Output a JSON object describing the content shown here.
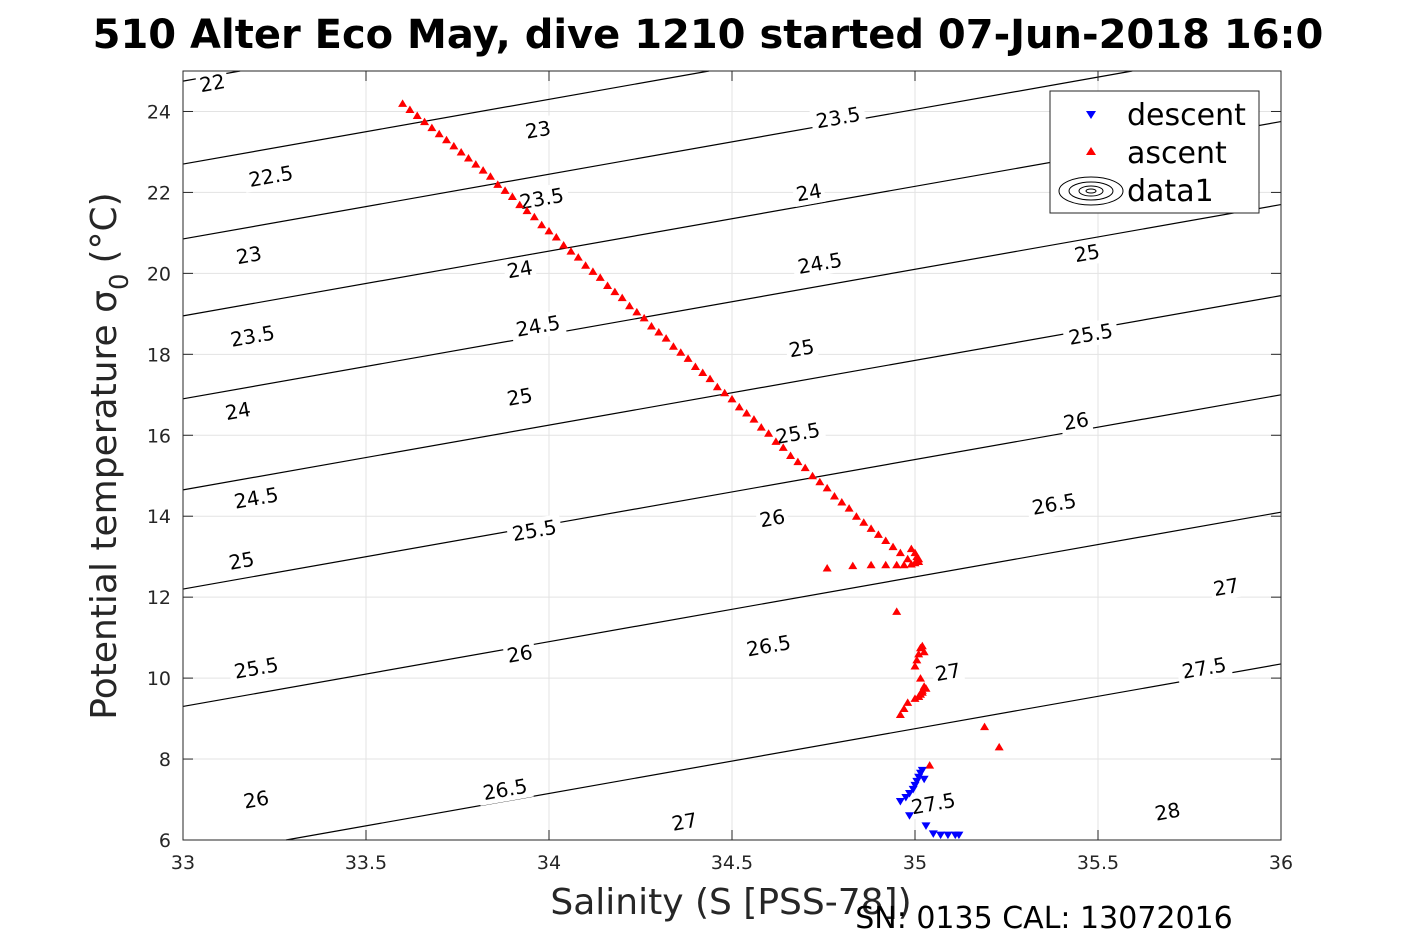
{
  "chart_data": {
    "type": "scatter",
    "title": "510 Alter Eco May, dive 1210 started 07-Jun-2018 16:0",
    "xlabel": "Salinity (S [PSS-78])",
    "ylabel": "Potential temperature σ",
    "ylabel_subscript": "0",
    "ylabel_unit": "(°C)",
    "footer": "SN: 0135  CAL: 13072016",
    "xlim": [
      33,
      36
    ],
    "ylim": [
      6,
      25
    ],
    "xticks": [
      33,
      33.5,
      34,
      34.5,
      35,
      35.5,
      36
    ],
    "xtick_labels": [
      "33",
      "33.5",
      "34",
      "34.5",
      "35",
      "35.5",
      "36"
    ],
    "yticks": [
      6,
      8,
      10,
      12,
      14,
      16,
      18,
      20,
      22,
      24
    ],
    "ytick_labels": [
      "6",
      "8",
      "10",
      "12",
      "14",
      "16",
      "18",
      "20",
      "22",
      "24"
    ],
    "grid": true,
    "legend_position": "top-right",
    "legend": [
      {
        "label": "descent",
        "marker": "triangle-down",
        "color": "#0000ff"
      },
      {
        "label": "ascent",
        "marker": "triangle-up",
        "color": "#ff0000"
      },
      {
        "label": "data1",
        "marker": "contour",
        "color": "#000000"
      }
    ],
    "contours": {
      "color": "#000000",
      "lines": [
        {
          "level": 22,
          "label": "22",
          "left_temp": 24.75
        },
        {
          "level": 22.5,
          "label": "22.5",
          "left_temp": 22.7
        },
        {
          "level": 23,
          "label": "23",
          "left_temp": 20.85
        },
        {
          "level": 23.5,
          "label": "23.5",
          "left_temp": 18.95
        },
        {
          "level": 24,
          "label": "24",
          "left_temp": 16.9
        },
        {
          "level": 24.5,
          "label": "24.5",
          "left_temp": 14.65
        },
        {
          "level": 25,
          "label": "25",
          "left_temp": 12.2
        },
        {
          "level": 25.5,
          "label": "25.5",
          "left_temp": 9.3
        },
        {
          "level": 26,
          "label": "26",
          "left_temp": 5.55
        },
        {
          "level": 26.5,
          "label": "26.5",
          "left_temp": 0.8
        },
        {
          "level": 27,
          "label": "27",
          "left_temp": -3.95
        },
        {
          "level": 27.5,
          "label": "27.5",
          "left_temp": -8.2
        },
        {
          "level": 28,
          "label": "28",
          "left_temp": -12.1
        }
      ],
      "labels": [
        {
          "text": "22",
          "x": 33.08,
          "y": 24.7
        },
        {
          "text": "22.5",
          "x": 33.24,
          "y": 22.4
        },
        {
          "text": "23",
          "x": 33.18,
          "y": 20.45
        },
        {
          "text": "23.5",
          "x": 33.19,
          "y": 18.45
        },
        {
          "text": "24",
          "x": 33.15,
          "y": 16.6
        },
        {
          "text": "24.5",
          "x": 33.2,
          "y": 14.45
        },
        {
          "text": "25",
          "x": 33.16,
          "y": 12.9
        },
        {
          "text": "25.5",
          "x": 33.2,
          "y": 10.25
        },
        {
          "text": "26",
          "x": 33.2,
          "y": 7.0
        },
        {
          "text": "23",
          "x": 33.97,
          "y": 23.55
        },
        {
          "text": "23.5",
          "x": 33.98,
          "y": 21.85
        },
        {
          "text": "24",
          "x": 33.92,
          "y": 20.1
        },
        {
          "text": "24.5",
          "x": 33.97,
          "y": 18.7
        },
        {
          "text": "25",
          "x": 33.92,
          "y": 16.95
        },
        {
          "text": "25.5",
          "x": 33.96,
          "y": 13.65
        },
        {
          "text": "26",
          "x": 33.92,
          "y": 10.6
        },
        {
          "text": "26.5",
          "x": 33.88,
          "y": 7.25
        },
        {
          "text": "27",
          "x": 34.37,
          "y": 6.45
        },
        {
          "text": "23.5",
          "x": 34.79,
          "y": 23.85
        },
        {
          "text": "24",
          "x": 34.71,
          "y": 22.0
        },
        {
          "text": "24.5",
          "x": 34.74,
          "y": 20.25
        },
        {
          "text": "25",
          "x": 34.69,
          "y": 18.15
        },
        {
          "text": "25.5",
          "x": 34.68,
          "y": 16.05
        },
        {
          "text": "26",
          "x": 34.61,
          "y": 13.95
        },
        {
          "text": "26.5",
          "x": 34.6,
          "y": 10.8
        },
        {
          "text": "27",
          "x": 35.09,
          "y": 10.15
        },
        {
          "text": "27.5",
          "x": 35.05,
          "y": 6.9
        },
        {
          "text": "25",
          "x": 35.47,
          "y": 20.5
        },
        {
          "text": "25.5",
          "x": 35.48,
          "y": 18.5
        },
        {
          "text": "26",
          "x": 35.44,
          "y": 16.35
        },
        {
          "text": "26.5",
          "x": 35.38,
          "y": 14.3
        },
        {
          "text": "27",
          "x": 35.85,
          "y": 12.25
        },
        {
          "text": "27.5",
          "x": 35.79,
          "y": 10.25
        },
        {
          "text": "28",
          "x": 35.69,
          "y": 6.7
        }
      ]
    },
    "series": [
      {
        "name": "descent",
        "marker": "triangle-down",
        "color": "#0000ff",
        "x": [
          34.96,
          34.975,
          34.985,
          34.995,
          35.0,
          35.005,
          35.01,
          35.015,
          35.02,
          35.025,
          34.985,
          35.03,
          35.05,
          35.07,
          35.09,
          35.11,
          35.12
        ],
        "y": [
          6.95,
          7.05,
          7.15,
          7.25,
          7.35,
          7.45,
          7.55,
          7.65,
          7.72,
          7.5,
          6.6,
          6.35,
          6.15,
          6.12,
          6.12,
          6.12,
          6.12
        ]
      },
      {
        "name": "ascent",
        "marker": "triangle-up",
        "color": "#ff0000",
        "x": [
          33.6,
          33.62,
          33.64,
          33.66,
          33.68,
          33.7,
          33.72,
          33.74,
          33.76,
          33.78,
          33.8,
          33.82,
          33.84,
          33.86,
          33.88,
          33.9,
          33.92,
          33.94,
          33.96,
          33.98,
          34.0,
          34.02,
          34.04,
          34.06,
          34.08,
          34.1,
          34.12,
          34.14,
          34.16,
          34.18,
          34.2,
          34.22,
          34.24,
          34.26,
          34.28,
          34.3,
          34.32,
          34.34,
          34.36,
          34.38,
          34.4,
          34.42,
          34.44,
          34.46,
          34.48,
          34.5,
          34.52,
          34.54,
          34.56,
          34.58,
          34.6,
          34.62,
          34.64,
          34.66,
          34.68,
          34.7,
          34.72,
          34.74,
          34.76,
          34.78,
          34.8,
          34.82,
          34.84,
          34.86,
          34.88,
          34.9,
          34.92,
          34.94,
          34.96,
          34.98,
          34.99,
          35.0,
          35.005,
          35.01,
          35.01,
          35.0,
          34.99,
          34.97,
          34.95,
          34.92,
          34.88,
          34.83,
          34.76,
          34.95,
          35.0,
          35.005,
          35.01,
          35.015,
          35.02,
          35.025,
          35.015,
          35.01,
          35.02,
          35.03,
          35.025,
          35.02,
          35.015,
          35.01,
          35.0,
          34.98,
          34.97,
          34.96,
          35.04,
          35.19,
          35.23
        ],
        "y": [
          24.2,
          24.05,
          23.9,
          23.75,
          23.6,
          23.45,
          23.3,
          23.15,
          23.0,
          22.85,
          22.7,
          22.55,
          22.4,
          22.2,
          22.05,
          21.9,
          21.7,
          21.55,
          21.4,
          21.2,
          21.05,
          20.9,
          20.7,
          20.55,
          20.4,
          20.2,
          20.05,
          19.9,
          19.7,
          19.55,
          19.4,
          19.2,
          19.05,
          18.9,
          18.7,
          18.55,
          18.4,
          18.2,
          18.05,
          17.9,
          17.7,
          17.55,
          17.4,
          17.2,
          17.05,
          16.9,
          16.7,
          16.55,
          16.4,
          16.2,
          16.05,
          15.85,
          15.7,
          15.5,
          15.35,
          15.2,
          15.0,
          14.85,
          14.7,
          14.5,
          14.35,
          14.2,
          14.0,
          13.85,
          13.7,
          13.55,
          13.4,
          13.25,
          13.1,
          12.95,
          13.2,
          13.1,
          13.0,
          12.95,
          12.88,
          12.85,
          12.82,
          12.8,
          12.8,
          12.8,
          12.8,
          12.78,
          12.72,
          11.65,
          10.3,
          10.45,
          10.6,
          10.75,
          10.8,
          10.65,
          10.0,
          9.55,
          9.65,
          9.75,
          9.8,
          9.7,
          9.6,
          9.55,
          9.5,
          9.4,
          9.25,
          9.1,
          7.85,
          8.8,
          8.3
        ]
      }
    ]
  }
}
